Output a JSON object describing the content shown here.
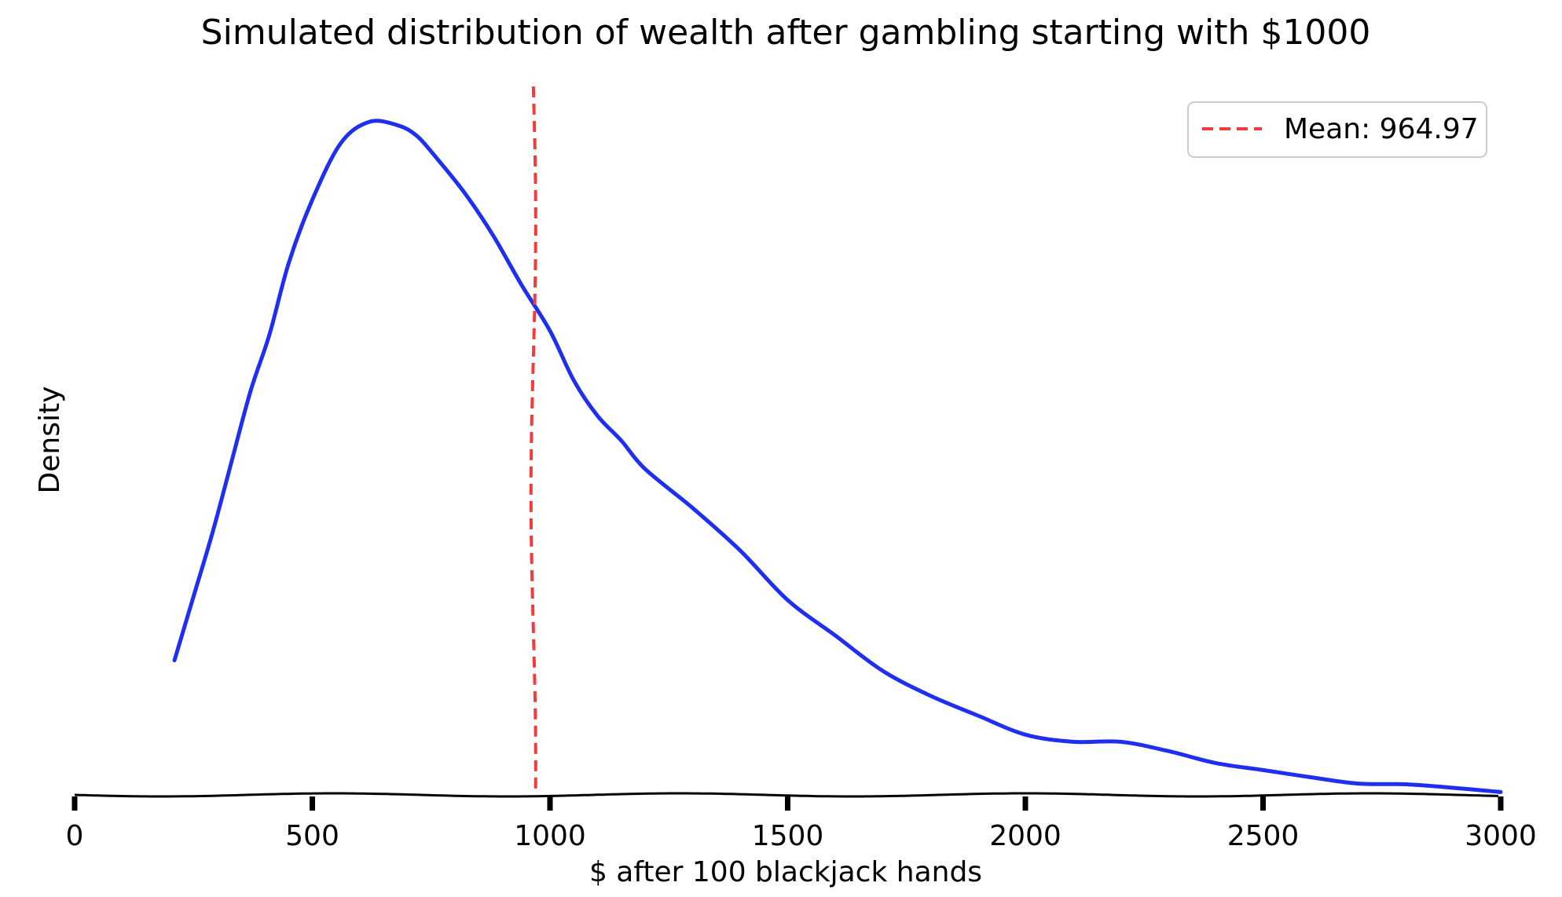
{
  "chart_data": {
    "type": "line",
    "title": "Simulated distribution of wealth after gambling starting with $1000",
    "xlabel": "$ after 100 blackjack hands",
    "ylabel": "Density",
    "xlim": [
      0,
      3000
    ],
    "ylim": [
      0,
      1
    ],
    "xticks": [
      0,
      500,
      1000,
      1500,
      2000,
      2500,
      3000
    ],
    "xtick_labels": [
      "0",
      "500",
      "1000",
      "1500",
      "2000",
      "2500",
      "3000"
    ],
    "y_ticks_shown": false,
    "grid": false,
    "legend": {
      "position": "top-right"
    },
    "series": [
      {
        "name": "",
        "style": "solid",
        "color": "#1f2ff0",
        "x": [
          210,
          250,
          290,
          330,
          370,
          410,
          450,
          500,
          560,
          620,
          680,
          720,
          760,
          820,
          880,
          940,
          1000,
          1050,
          1100,
          1150,
          1200,
          1300,
          1400,
          1500,
          1600,
          1700,
          1800,
          1900,
          2000,
          2100,
          2200,
          2300,
          2400,
          2500,
          2600,
          2700,
          2800,
          2900,
          3000
        ],
        "y": [
          0.19,
          0.28,
          0.37,
          0.47,
          0.57,
          0.65,
          0.75,
          0.84,
          0.92,
          0.95,
          0.945,
          0.93,
          0.9,
          0.85,
          0.79,
          0.72,
          0.655,
          0.585,
          0.535,
          0.5,
          0.46,
          0.405,
          0.345,
          0.275,
          0.225,
          0.175,
          0.14,
          0.112,
          0.085,
          0.075,
          0.075,
          0.062,
          0.045,
          0.035,
          0.025,
          0.016,
          0.015,
          0.01,
          0.004
        ]
      },
      {
        "name": "Mean: 964.97",
        "style": "dashed",
        "color": "#f03c3c",
        "kind": "vline",
        "x_value": 964.97
      }
    ]
  }
}
